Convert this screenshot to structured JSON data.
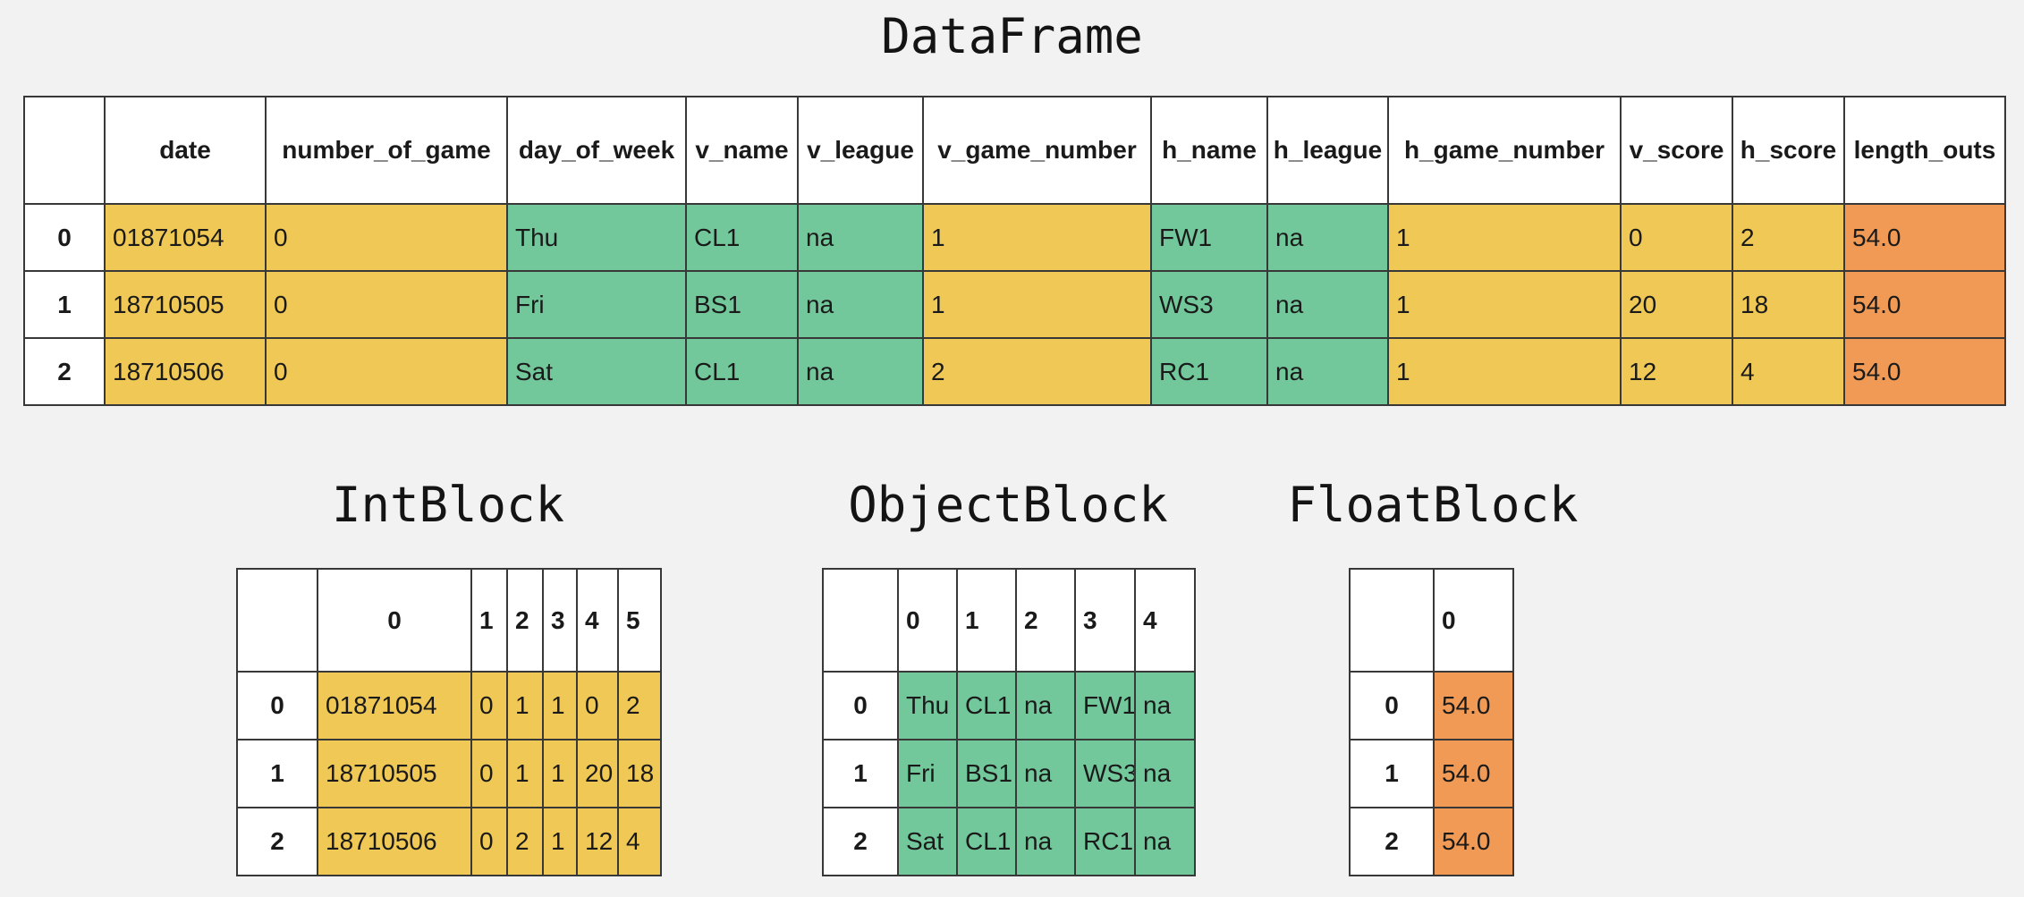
{
  "page": {
    "background": "#f2f2f2"
  },
  "colors": {
    "int": "#efc855",
    "object": "#72c79b",
    "float": "#f09a55",
    "header": "#ffffff",
    "border": "#383838"
  },
  "tables": [
    {
      "name": "dataframe",
      "title": "DataFrame",
      "columns": [
        "",
        "date",
        "number_of_game",
        "day_of_week",
        "v_name",
        "v_league",
        "v_game_number",
        "h_name",
        "h_league",
        "h_game_number",
        "v_score",
        "h_score",
        "length_outs"
      ],
      "col_types": [
        "index",
        "int",
        "int",
        "object",
        "object",
        "object",
        "int",
        "object",
        "object",
        "int",
        "int",
        "int",
        "float"
      ],
      "rows": [
        [
          "0",
          "01871054",
          "0",
          "Thu",
          "CL1",
          "na",
          "1",
          "FW1",
          "na",
          "1",
          "0",
          "2",
          "54.0"
        ],
        [
          "1",
          "18710505",
          "0",
          "Fri",
          "BS1",
          "na",
          "1",
          "WS3",
          "na",
          "1",
          "20",
          "18",
          "54.0"
        ],
        [
          "2",
          "18710506",
          "0",
          "Sat",
          "CL1",
          "na",
          "2",
          "RC1",
          "na",
          "1",
          "12",
          "4",
          "54.0"
        ]
      ]
    },
    {
      "name": "intblock",
      "title": "IntBlock",
      "columns": [
        "",
        "0",
        "1",
        "2",
        "3",
        "4",
        "5"
      ],
      "col_types": [
        "index",
        "int",
        "int",
        "int",
        "int",
        "int",
        "int"
      ],
      "rows": [
        [
          "0",
          "01871054",
          "0",
          "1",
          "1",
          "0",
          "2"
        ],
        [
          "1",
          "18710505",
          "0",
          "1",
          "1",
          "20",
          "18"
        ],
        [
          "2",
          "18710506",
          "0",
          "2",
          "1",
          "12",
          "4"
        ]
      ]
    },
    {
      "name": "objectblock",
      "title": "ObjectBlock",
      "columns": [
        "",
        "0",
        "1",
        "2",
        "3",
        "4"
      ],
      "col_types": [
        "index",
        "object",
        "object",
        "object",
        "object",
        "object"
      ],
      "rows": [
        [
          "0",
          "Thu",
          "CL1",
          "na",
          "FW1",
          "na"
        ],
        [
          "1",
          "Fri",
          "BS1",
          "na",
          "WS3",
          "na"
        ],
        [
          "2",
          "Sat",
          "CL1",
          "na",
          "RC1",
          "na"
        ]
      ]
    },
    {
      "name": "floatblock",
      "title": "FloatBlock",
      "columns": [
        "",
        "0"
      ],
      "col_types": [
        "index",
        "float"
      ],
      "rows": [
        [
          "0",
          "54.0"
        ],
        [
          "1",
          "54.0"
        ],
        [
          "2",
          "54.0"
        ]
      ]
    }
  ]
}
